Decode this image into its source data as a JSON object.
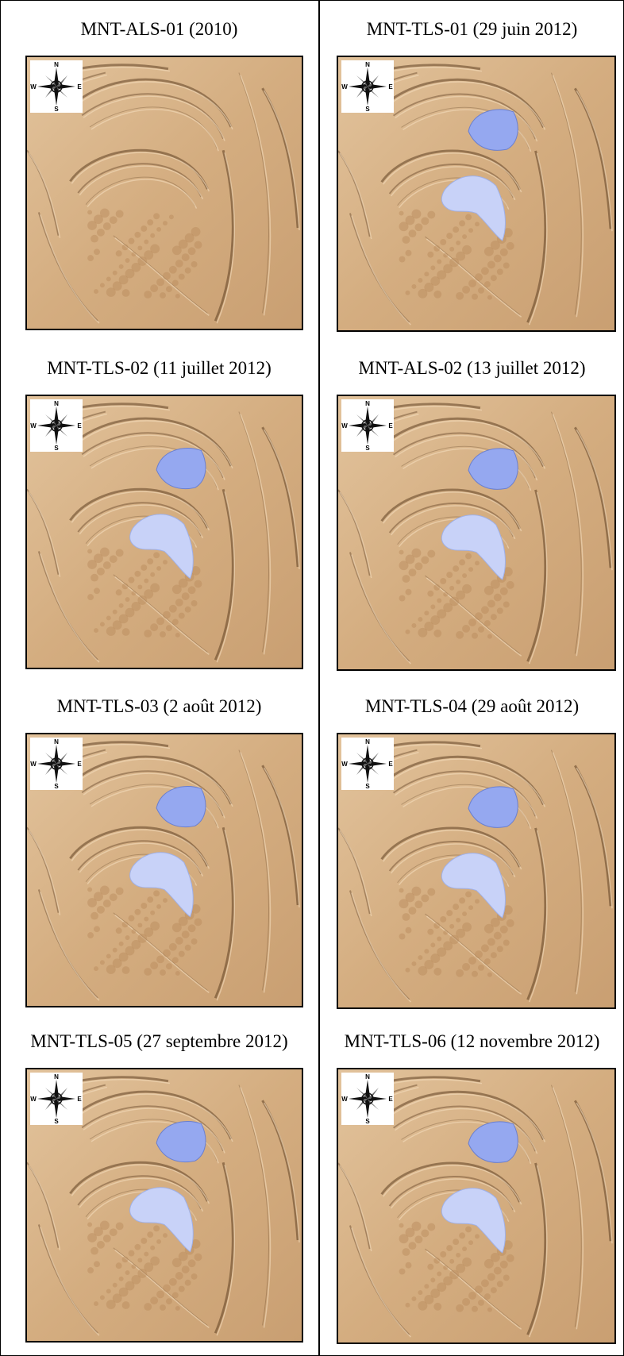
{
  "panels": [
    {
      "caption": "MNT-ALS-01 (2010)",
      "lakes": false
    },
    {
      "caption": "MNT-TLS-01 (29 juin 2012)",
      "lakes": true
    },
    {
      "caption": "MNT-TLS-02 (11 juillet 2012)",
      "lakes": true
    },
    {
      "caption": "MNT-ALS-02 (13 juillet 2012)",
      "lakes": true
    },
    {
      "caption": "MNT-TLS-03 (2 août 2012)",
      "lakes": true
    },
    {
      "caption": "MNT-TLS-04 (29 août 2012)",
      "lakes": true
    },
    {
      "caption": "MNT-TLS-05 (27 septembre 2012)",
      "lakes": true
    },
    {
      "caption": "MNT-TLS-06 (12 novembre 2012)",
      "lakes": true
    }
  ],
  "compass": {
    "north": "N",
    "south": "S",
    "east": "E",
    "west": "W"
  },
  "colors": {
    "terrain": "#d8b48a",
    "terrain_dark": "#6b4a2a",
    "upper_lake": "#95a8f0",
    "lower_lake": "#c8d2f8"
  }
}
